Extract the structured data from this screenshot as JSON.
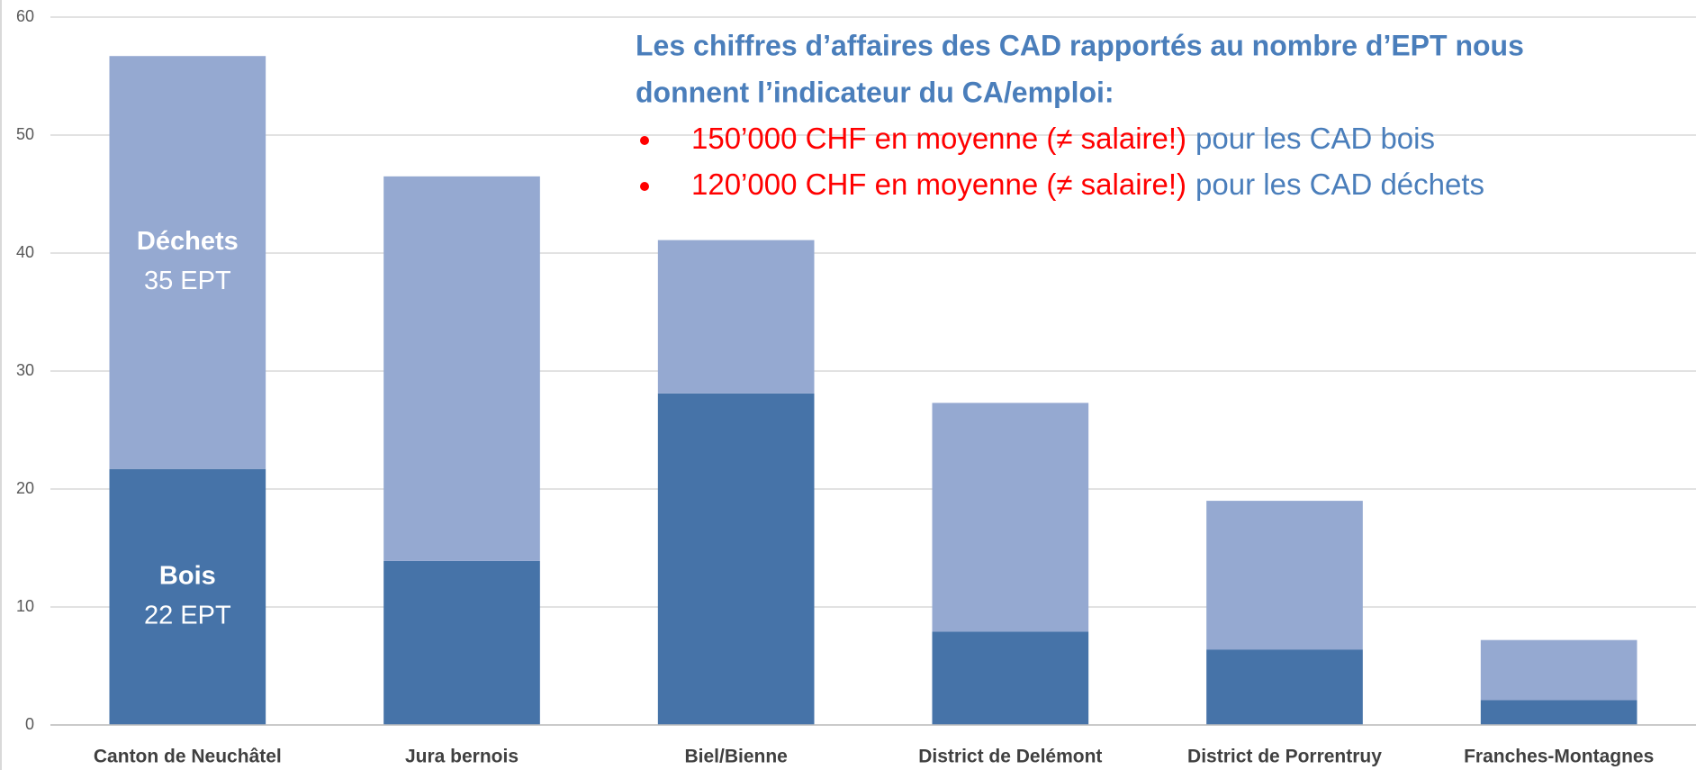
{
  "chart_data": {
    "type": "stacked_bar",
    "categories": [
      "Canton de Neuchâtel",
      "Jura bernois",
      "Biel/Bienne",
      "District de Delémont",
      "District de Porrentruy",
      "Franches-Montagnes"
    ],
    "series": [
      {
        "name": "Bois",
        "color": "#4673a8",
        "values": [
          21.7,
          13.9,
          28.1,
          7.9,
          6.4,
          2.1
        ],
        "value_labels": [
          "22 EPT",
          null,
          null,
          null,
          null,
          null
        ]
      },
      {
        "name": "Déchets",
        "color": "#95a9d1",
        "values": [
          35.0,
          32.6,
          13.0,
          19.4,
          12.6,
          5.1
        ],
        "value_labels": [
          "35 EPT",
          null,
          null,
          null,
          null,
          null
        ]
      }
    ],
    "ylim": [
      0,
      60
    ],
    "yticks": [
      0,
      10,
      20,
      30,
      40,
      50,
      60
    ],
    "grid": true,
    "annotation": {
      "heading": [
        "Les chiffres d’affaires des CAD rapportés au nombre d’EPT nous",
        "donnent l’indicateur du CA/emploi:"
      ],
      "items": [
        {
          "emphasis": "150’000 CHF en moyenne (≠ salaire!)",
          "text": "pour les CAD bois"
        },
        {
          "emphasis": "120’000 CHF en moyenne (≠ salaire!)",
          "text": "pour les CAD déchets"
        }
      ]
    }
  }
}
